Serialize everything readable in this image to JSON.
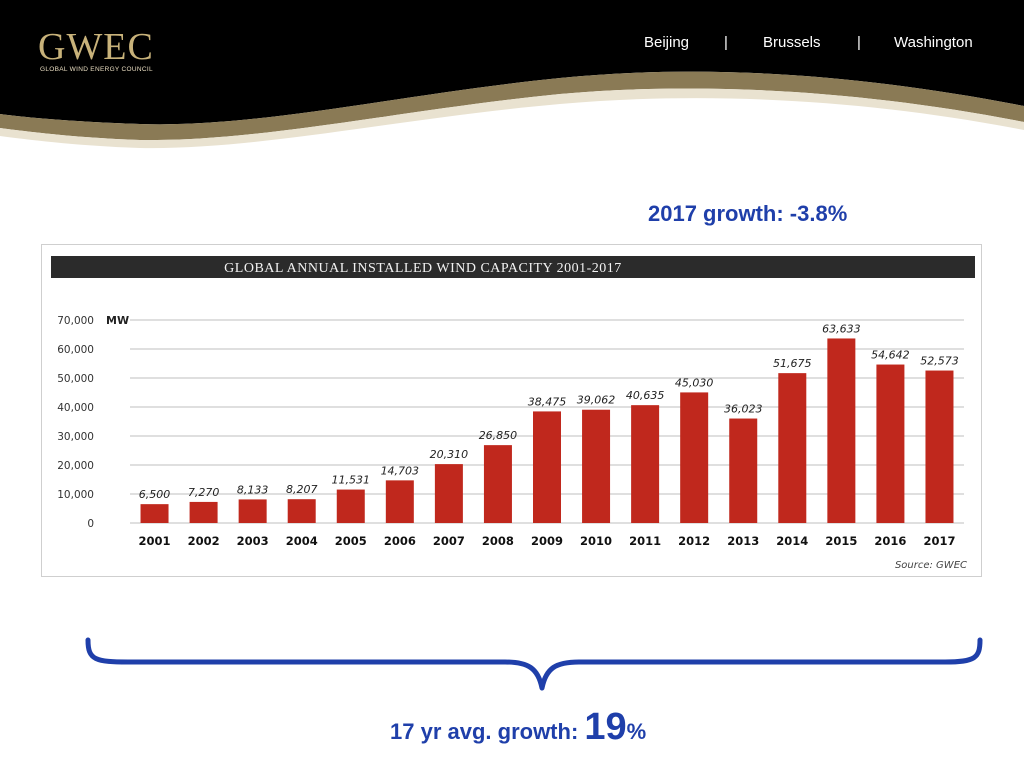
{
  "header": {
    "logo_text": "GWEC",
    "logo_subtitle": "GLOBAL WIND ENERGY COUNCIL",
    "nav": [
      "Beijing",
      "|",
      "Brussels",
      "|",
      "Washington"
    ]
  },
  "growth_note": "2017 growth: -3.8%",
  "avg_growth": {
    "prefix": "17 yr avg. growth: ",
    "number": "19",
    "suffix": "%"
  },
  "colors": {
    "bar": "#c0281d",
    "title_band": "#2b2b2b",
    "accent_blue": "#1f3faa",
    "header_bg": "#000000",
    "gold": "#c8b27a"
  },
  "chart_data": {
    "type": "bar",
    "title": "GLOBAL ANNUAL INSTALLED WIND CAPACITY 2001-2017",
    "ylabel": "MW",
    "source": "Source: GWEC",
    "categories": [
      "2001",
      "2002",
      "2003",
      "2004",
      "2005",
      "2006",
      "2007",
      "2008",
      "2009",
      "2010",
      "2011",
      "2012",
      "2013",
      "2014",
      "2015",
      "2016",
      "2017"
    ],
    "values": [
      6500,
      7270,
      8133,
      8207,
      11531,
      14703,
      20310,
      26850,
      38475,
      39062,
      40635,
      45030,
      36023,
      51675,
      63633,
      54642,
      52573
    ],
    "labels": [
      "6,500",
      "7,270",
      "8,133",
      "8,207",
      "11,531",
      "14,703",
      "20,310",
      "26,850",
      "38,475",
      "39,062",
      "40,635",
      "45,030",
      "36,023",
      "51,675",
      "63,633",
      "54,642",
      "52,573"
    ],
    "yticks": [
      0,
      10000,
      20000,
      30000,
      40000,
      50000,
      60000,
      70000
    ],
    "ytick_labels": [
      "0",
      "10,000",
      "20,000",
      "30,000",
      "40,000",
      "50,000",
      "60,000",
      "70,000"
    ],
    "ylim": [
      0,
      70000
    ],
    "grid": true
  }
}
